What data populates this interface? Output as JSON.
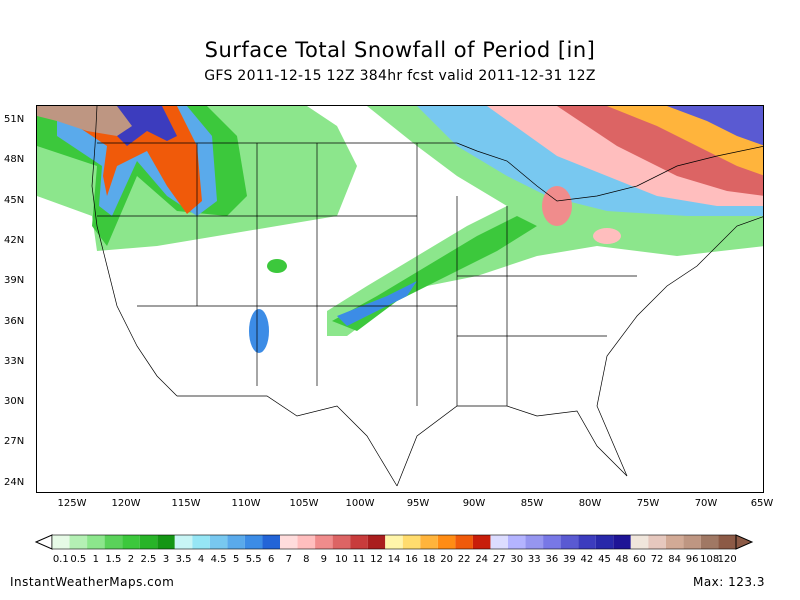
{
  "title": "Surface Total Snowfall of Period [in]",
  "subtitle": "GFS 2011-12-15 12Z 384hr fcst valid 2011-12-31 12Z",
  "lat_labels": [
    "51N",
    "48N",
    "45N",
    "42N",
    "39N",
    "36N",
    "33N",
    "30N",
    "27N",
    "24N"
  ],
  "lon_labels": [
    "125W",
    "120W",
    "115W",
    "110W",
    "105W",
    "100W",
    "95W",
    "90W",
    "85W",
    "80W",
    "75W",
    "70W",
    "65W"
  ],
  "legend": {
    "labels": [
      "0.1",
      "0.5",
      "1",
      "1.5",
      "2",
      "2.5",
      "3",
      "3.5",
      "4",
      "4.5",
      "5",
      "5.5",
      "6",
      "7",
      "8",
      "9",
      "10",
      "11",
      "12",
      "14",
      "16",
      "18",
      "20",
      "22",
      "24",
      "27",
      "30",
      "33",
      "36",
      "39",
      "42",
      "45",
      "48",
      "60",
      "72",
      "84",
      "96",
      "108",
      "120"
    ],
    "colors": [
      "#e6fae6",
      "#b4f0b4",
      "#8ce68c",
      "#5ad25a",
      "#3cc83c",
      "#28b428",
      "#149614",
      "#c8f5f5",
      "#96e6f5",
      "#78c8f0",
      "#5aaaeb",
      "#3c8ce6",
      "#2364d7",
      "#ffdcdc",
      "#ffbebe",
      "#f08c8c",
      "#dc6464",
      "#c83c3c",
      "#aa1e1e",
      "#fff5aa",
      "#ffdc6e",
      "#ffb43c",
      "#ff8c14",
      "#f05a0a",
      "#c81e0a",
      "#dcdcff",
      "#b4b4ff",
      "#9696f0",
      "#7878e6",
      "#5a5ad2",
      "#3c3cbe",
      "#2828aa",
      "#1e1496",
      "#f0e6dc",
      "#e6c8be",
      "#d2aa96",
      "#be9682",
      "#a07864",
      "#8c5a46"
    ]
  },
  "footer": {
    "source": "InstantWeatherMaps.com",
    "max": "Max:  123.3"
  }
}
